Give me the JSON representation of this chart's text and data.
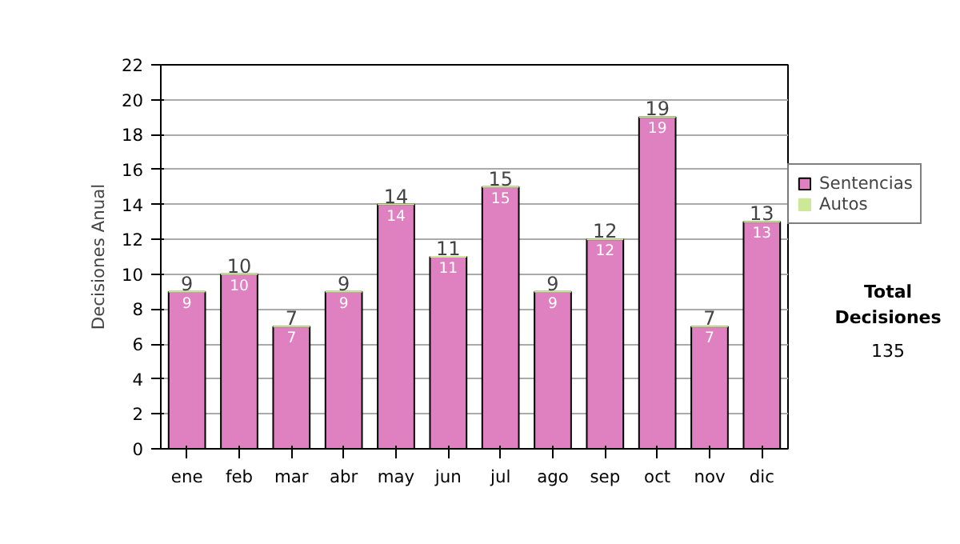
{
  "chart_data": {
    "type": "bar",
    "stacked": true,
    "ylabel": "Decisiones Anual",
    "categories": [
      "ene",
      "feb",
      "mar",
      "abr",
      "may",
      "jun",
      "jul",
      "ago",
      "sep",
      "oct",
      "nov",
      "dic"
    ],
    "series": [
      {
        "name": "Sentencias",
        "color": "#df80c0",
        "values": [
          9,
          10,
          7,
          9,
          14,
          11,
          15,
          9,
          12,
          19,
          7,
          13
        ],
        "value_labels": [
          "9",
          "10",
          "7",
          "9",
          "14",
          "11",
          "15",
          "9",
          "12",
          "19",
          "7",
          "13"
        ]
      },
      {
        "name": "Autos",
        "color": "#cce999",
        "values": [
          0,
          0,
          0,
          0,
          0,
          0,
          0,
          0,
          0,
          0,
          0,
          0
        ]
      }
    ],
    "totals": [
      "9",
      "10",
      "7",
      "9",
      "14",
      "11",
      "15",
      "9",
      "12",
      "19",
      "7",
      "13"
    ],
    "ylim": [
      0,
      22
    ],
    "yticks": [
      0,
      2,
      4,
      6,
      8,
      10,
      12,
      14,
      16,
      18,
      20,
      22
    ],
    "grid": "y",
    "legend": "right",
    "annotations": [
      "Total Decisiones",
      "135"
    ]
  }
}
